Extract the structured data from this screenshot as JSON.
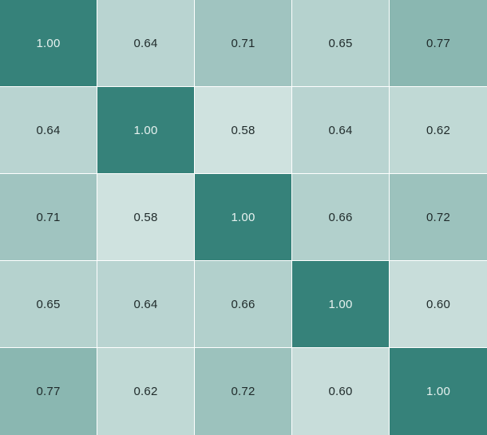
{
  "chart_data": {
    "type": "heatmap",
    "rows": 5,
    "cols": 5,
    "values": [
      [
        "1.00",
        "0.64",
        "0.71",
        "0.65",
        "0.77"
      ],
      [
        "0.64",
        "1.00",
        "0.58",
        "0.64",
        "0.62"
      ],
      [
        "0.71",
        "0.58",
        "1.00",
        "0.66",
        "0.72"
      ],
      [
        "0.65",
        "0.64",
        "0.66",
        "1.00",
        "0.60"
      ],
      [
        "0.77",
        "0.62",
        "0.72",
        "0.60",
        "1.00"
      ]
    ],
    "color_scale": {
      "min_value": 0.58,
      "max_value": 1.0,
      "min_color": "#cfe2df",
      "max_color": "#36827a",
      "light_text_color": "#e6f1ef",
      "dark_text_color": "#1f2a2a",
      "cell_gap_color": "#ffffff"
    },
    "grid": false,
    "legend": "none"
  }
}
